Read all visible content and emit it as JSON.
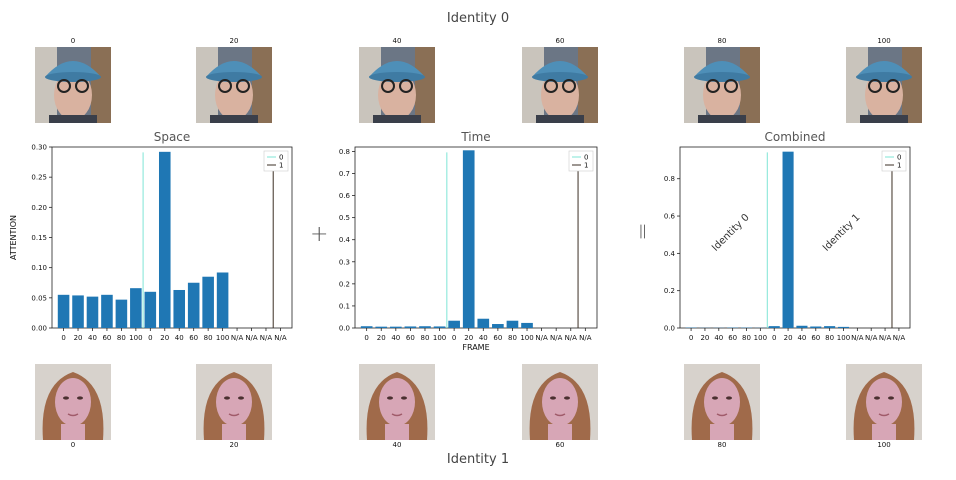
{
  "title_top": "Identity 0",
  "title_bottom": "Identity 1",
  "operators": {
    "plus": "+",
    "equals": "="
  },
  "top_frames": [
    "0",
    "20",
    "40",
    "60",
    "80",
    "100"
  ],
  "bottom_frames": [
    "0",
    "20",
    "40",
    "60",
    "80",
    "100"
  ],
  "colors": {
    "bar": "#1f77b4",
    "line0": "#7fe5d6",
    "line1": "#3b2f24"
  },
  "chart_data": [
    {
      "type": "bar",
      "title": "Space",
      "ylabel": "ATTENTION",
      "xlabel": "",
      "ylim": [
        0,
        0.3
      ],
      "yticks": [
        "0.00",
        "0.05",
        "0.10",
        "0.15",
        "0.20",
        "0.25",
        "0.30"
      ],
      "categories": [
        "0",
        "20",
        "40",
        "60",
        "80",
        "100",
        "0",
        "20",
        "40",
        "60",
        "80",
        "100",
        "N/A",
        "N/A",
        "N/A",
        "N/A"
      ],
      "values": [
        0.055,
        0.054,
        0.052,
        0.055,
        0.047,
        0.066,
        0.06,
        0.292,
        0.063,
        0.075,
        0.085,
        0.092,
        0,
        0,
        0,
        0
      ],
      "vlines": [
        {
          "name": "0",
          "position": 6
        },
        {
          "name": "1",
          "position": 15
        }
      ],
      "legend": [
        "0",
        "1"
      ],
      "legend_position": "top-right"
    },
    {
      "type": "bar",
      "title": "Time",
      "ylabel": "",
      "xlabel": "FRAME",
      "ylim": [
        0,
        0.82
      ],
      "yticks": [
        "0.0",
        "0.1",
        "0.2",
        "0.3",
        "0.4",
        "0.5",
        "0.6",
        "0.7",
        "0.8"
      ],
      "categories": [
        "0",
        "20",
        "40",
        "60",
        "80",
        "100",
        "0",
        "20",
        "40",
        "60",
        "80",
        "100",
        "N/A",
        "N/A",
        "N/A",
        "N/A"
      ],
      "values": [
        0.008,
        0.006,
        0.006,
        0.007,
        0.008,
        0.007,
        0.033,
        0.805,
        0.042,
        0.018,
        0.033,
        0.023,
        0,
        0,
        0,
        0
      ],
      "vlines": [
        {
          "name": "0",
          "position": 6
        },
        {
          "name": "1",
          "position": 15
        }
      ],
      "legend": [
        "0",
        "1"
      ],
      "legend_position": "top-right"
    },
    {
      "type": "bar",
      "title": "Combined",
      "ylabel": "",
      "xlabel": "",
      "ylim": [
        0,
        0.97
      ],
      "yticks": [
        "0.0",
        "0.2",
        "0.4",
        "0.6",
        "0.8"
      ],
      "categories": [
        "0",
        "20",
        "40",
        "60",
        "80",
        "100",
        "0",
        "20",
        "40",
        "60",
        "80",
        "100",
        "N/A",
        "N/A",
        "N/A",
        "N/A"
      ],
      "values": [
        0.002,
        0.001,
        0.001,
        0.002,
        0.002,
        0.001,
        0.01,
        0.945,
        0.012,
        0.008,
        0.01,
        0.006,
        0,
        0,
        0,
        0
      ],
      "vlines": [
        {
          "name": "0",
          "position": 6
        },
        {
          "name": "1",
          "position": 15
        }
      ],
      "legend": [
        "0",
        "1"
      ],
      "legend_position": "top-right",
      "annotations": [
        "Identity 0",
        "Identity 1"
      ]
    }
  ]
}
